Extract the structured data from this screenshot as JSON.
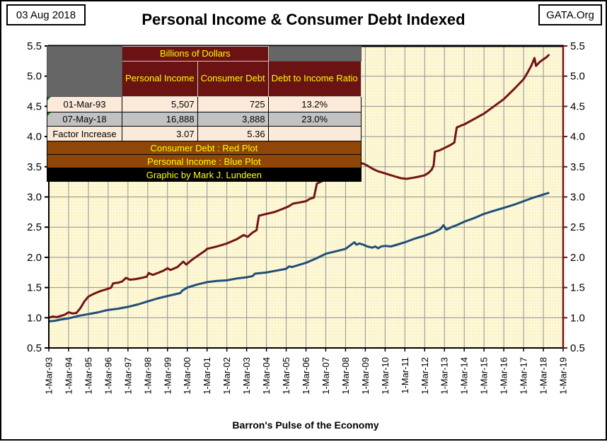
{
  "header": {
    "date": "03 Aug 2018",
    "title": "Personal Income & Consumer Debt Indexed",
    "source": "GATA.Org"
  },
  "table": {
    "group_header": "Billions of Dollars",
    "col_headers": [
      "Personal Income",
      "Consumer Debt",
      "Debt to Income Ratio"
    ],
    "rows": [
      {
        "label": "01-Mar-93",
        "values": [
          "5,507",
          "725",
          "13.2%"
        ]
      },
      {
        "label": "07-May-18",
        "values": [
          "16,888",
          "3,888",
          "23.0%"
        ]
      },
      {
        "label": "Factor Increase",
        "values": [
          "3.07",
          "5.36",
          ""
        ]
      }
    ],
    "legend": [
      "Consumer Debt :  Red Plot",
      "Personal Income : Blue Plot"
    ],
    "credit": "Graphic by Mark J. Lundeen"
  },
  "colors": {
    "plot_bg": "#FBF4CC",
    "plot_dot": "#FFFDE9",
    "grid": "#909090",
    "axis": "#000000",
    "right_axis": "#721414",
    "debt_line": "#721414",
    "income_line": "#1F4E79",
    "table_maroon": "#6B1212",
    "table_brown": "#8F4606",
    "table_cream": "#FBE9DA",
    "table_silver": "#C2C2C2",
    "table_gray": "#666666",
    "table_yellow": "#FFFF00",
    "flag_green": "#1E7A1E"
  },
  "chart_data": {
    "type": "line",
    "title": "Personal Income & Consumer Debt Indexed",
    "xlabel": "Barron's Pulse of the Economy",
    "ylabel": "",
    "grid": true,
    "ylim": [
      0.5,
      5.5
    ],
    "y_tick_step": 0.5,
    "y_tick_labels": [
      "0.5",
      "1.0",
      "1.5",
      "2.0",
      "2.5",
      "3.0",
      "3.5",
      "4.0",
      "4.5",
      "5.0",
      "5.5"
    ],
    "x_span": 26,
    "x_tick_labels": [
      "1-Mar-93",
      "1-Mar-94",
      "1-Mar-95",
      "1-Mar-96",
      "1-Mar-97",
      "1-Mar-98",
      "1-Mar-99",
      "1-Mar-00",
      "1-Mar-01",
      "1-Mar-02",
      "1-Mar-03",
      "1-Mar-04",
      "1-Mar-05",
      "1-Mar-06",
      "1-Mar-07",
      "1-Mar-08",
      "1-Mar-09",
      "1-Mar-10",
      "1-Mar-11",
      "1-Mar-12",
      "1-Mar-13",
      "1-Mar-14",
      "1-Mar-15",
      "1-Mar-16",
      "1-Mar-17",
      "1-Mar-18",
      "1-Mar-19"
    ],
    "series": [
      {
        "name": "Personal Income",
        "color": "#1F4E79",
        "points": [
          [
            0,
            0.94
          ],
          [
            0.3,
            0.95
          ],
          [
            0.6,
            0.97
          ],
          [
            1.0,
            0.99
          ],
          [
            1.5,
            1.03
          ],
          [
            2.0,
            1.06
          ],
          [
            2.5,
            1.09
          ],
          [
            3.0,
            1.13
          ],
          [
            3.5,
            1.15
          ],
          [
            4.0,
            1.18
          ],
          [
            4.5,
            1.22
          ],
          [
            5.0,
            1.27
          ],
          [
            5.5,
            1.32
          ],
          [
            6.0,
            1.36
          ],
          [
            6.4,
            1.39
          ],
          [
            6.65,
            1.41
          ],
          [
            6.75,
            1.45
          ],
          [
            7.0,
            1.5
          ],
          [
            7.5,
            1.55
          ],
          [
            8.0,
            1.59
          ],
          [
            8.5,
            1.61
          ],
          [
            9.0,
            1.62
          ],
          [
            9.5,
            1.65
          ],
          [
            10.0,
            1.67
          ],
          [
            10.3,
            1.69
          ],
          [
            10.42,
            1.73
          ],
          [
            11.0,
            1.75
          ],
          [
            11.5,
            1.78
          ],
          [
            12.0,
            1.81
          ],
          [
            12.15,
            1.85
          ],
          [
            12.3,
            1.84
          ],
          [
            12.6,
            1.87
          ],
          [
            13.0,
            1.91
          ],
          [
            13.5,
            1.98
          ],
          [
            14.0,
            2.06
          ],
          [
            14.5,
            2.1
          ],
          [
            15.0,
            2.14
          ],
          [
            15.2,
            2.19
          ],
          [
            15.45,
            2.25
          ],
          [
            15.55,
            2.21
          ],
          [
            15.7,
            2.23
          ],
          [
            15.9,
            2.21
          ],
          [
            16.1,
            2.18
          ],
          [
            16.35,
            2.16
          ],
          [
            16.5,
            2.18
          ],
          [
            16.65,
            2.15
          ],
          [
            16.8,
            2.18
          ],
          [
            17.0,
            2.19
          ],
          [
            17.3,
            2.18
          ],
          [
            17.6,
            2.21
          ],
          [
            18.0,
            2.25
          ],
          [
            18.5,
            2.31
          ],
          [
            19.0,
            2.36
          ],
          [
            19.5,
            2.42
          ],
          [
            19.8,
            2.47
          ],
          [
            19.95,
            2.53
          ],
          [
            20.1,
            2.46
          ],
          [
            20.35,
            2.5
          ],
          [
            20.6,
            2.53
          ],
          [
            21.0,
            2.59
          ],
          [
            21.5,
            2.65
          ],
          [
            22.0,
            2.72
          ],
          [
            22.5,
            2.77
          ],
          [
            23.0,
            2.82
          ],
          [
            23.5,
            2.87
          ],
          [
            24.0,
            2.93
          ],
          [
            24.5,
            2.99
          ],
          [
            25.0,
            3.04
          ],
          [
            25.3,
            3.07
          ]
        ]
      },
      {
        "name": "Consumer Debt",
        "color": "#721414",
        "points": [
          [
            0,
            1.0
          ],
          [
            0.2,
            1.02
          ],
          [
            0.4,
            1.01
          ],
          [
            0.6,
            1.03
          ],
          [
            0.8,
            1.05
          ],
          [
            1.0,
            1.09
          ],
          [
            1.2,
            1.07
          ],
          [
            1.4,
            1.08
          ],
          [
            1.6,
            1.16
          ],
          [
            1.8,
            1.27
          ],
          [
            2.0,
            1.35
          ],
          [
            2.3,
            1.4
          ],
          [
            2.6,
            1.44
          ],
          [
            2.8,
            1.46
          ],
          [
            3.0,
            1.48
          ],
          [
            3.15,
            1.5
          ],
          [
            3.25,
            1.57
          ],
          [
            3.5,
            1.58
          ],
          [
            3.7,
            1.6
          ],
          [
            3.9,
            1.66
          ],
          [
            4.1,
            1.63
          ],
          [
            4.4,
            1.64
          ],
          [
            4.7,
            1.66
          ],
          [
            4.95,
            1.68
          ],
          [
            5.05,
            1.74
          ],
          [
            5.25,
            1.71
          ],
          [
            5.5,
            1.74
          ],
          [
            5.8,
            1.78
          ],
          [
            6.0,
            1.82
          ],
          [
            6.15,
            1.79
          ],
          [
            6.5,
            1.84
          ],
          [
            6.8,
            1.93
          ],
          [
            6.95,
            1.88
          ],
          [
            7.2,
            1.95
          ],
          [
            7.5,
            2.02
          ],
          [
            7.9,
            2.11
          ],
          [
            8.0,
            2.14
          ],
          [
            8.5,
            2.18
          ],
          [
            9.0,
            2.23
          ],
          [
            9.5,
            2.3
          ],
          [
            9.85,
            2.37
          ],
          [
            10.05,
            2.34
          ],
          [
            10.3,
            2.41
          ],
          [
            10.5,
            2.45
          ],
          [
            10.62,
            2.69
          ],
          [
            11.0,
            2.72
          ],
          [
            11.4,
            2.75
          ],
          [
            11.8,
            2.8
          ],
          [
            12.1,
            2.84
          ],
          [
            12.35,
            2.89
          ],
          [
            12.7,
            2.91
          ],
          [
            13.0,
            2.93
          ],
          [
            13.2,
            2.97
          ],
          [
            13.4,
            2.99
          ],
          [
            13.55,
            3.22
          ],
          [
            13.8,
            3.26
          ],
          [
            14.0,
            3.29
          ],
          [
            14.4,
            3.37
          ],
          [
            14.8,
            3.45
          ],
          [
            15.2,
            3.51
          ],
          [
            15.45,
            3.55
          ],
          [
            15.67,
            3.57
          ],
          [
            15.9,
            3.55
          ],
          [
            16.1,
            3.52
          ],
          [
            16.35,
            3.47
          ],
          [
            16.6,
            3.43
          ],
          [
            16.9,
            3.4
          ],
          [
            17.2,
            3.37
          ],
          [
            17.5,
            3.34
          ],
          [
            17.8,
            3.31
          ],
          [
            18.1,
            3.3
          ],
          [
            18.45,
            3.32
          ],
          [
            18.75,
            3.34
          ],
          [
            19.0,
            3.36
          ],
          [
            19.2,
            3.4
          ],
          [
            19.35,
            3.45
          ],
          [
            19.45,
            3.52
          ],
          [
            19.52,
            3.75
          ],
          [
            19.75,
            3.77
          ],
          [
            20.0,
            3.81
          ],
          [
            20.3,
            3.86
          ],
          [
            20.5,
            3.9
          ],
          [
            20.62,
            4.15
          ],
          [
            20.9,
            4.19
          ],
          [
            21.0,
            4.2
          ],
          [
            21.5,
            4.29
          ],
          [
            22.0,
            4.38
          ],
          [
            22.5,
            4.5
          ],
          [
            23.0,
            4.62
          ],
          [
            23.5,
            4.78
          ],
          [
            24.0,
            4.95
          ],
          [
            24.2,
            5.06
          ],
          [
            24.4,
            5.18
          ],
          [
            24.55,
            5.3
          ],
          [
            24.63,
            5.17
          ],
          [
            24.8,
            5.23
          ],
          [
            25.0,
            5.28
          ],
          [
            25.15,
            5.31
          ],
          [
            25.3,
            5.36
          ]
        ]
      }
    ]
  }
}
